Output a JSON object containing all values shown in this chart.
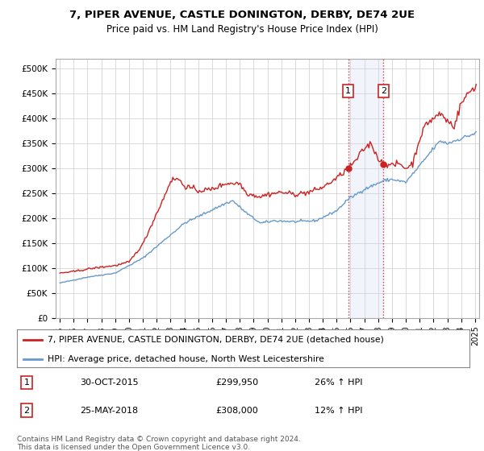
{
  "title": "7, PIPER AVENUE, CASTLE DONINGTON, DERBY, DE74 2UE",
  "subtitle": "Price paid vs. HM Land Registry's House Price Index (HPI)",
  "ylim": [
    0,
    520000
  ],
  "yticks": [
    0,
    50000,
    100000,
    150000,
    200000,
    250000,
    300000,
    350000,
    400000,
    450000,
    500000
  ],
  "ytick_labels": [
    "£0",
    "£50K",
    "£100K",
    "£150K",
    "£200K",
    "£250K",
    "£300K",
    "£350K",
    "£400K",
    "£450K",
    "£500K"
  ],
  "sale1_date": 2015.83,
  "sale1_price": 299950,
  "sale1_label": "1",
  "sale2_date": 2018.39,
  "sale2_price": 308000,
  "sale2_label": "2",
  "sale1_text": "30-OCT-2015",
  "sale1_price_text": "£299,950",
  "sale1_hpi_text": "26% ↑ HPI",
  "sale2_text": "25-MAY-2018",
  "sale2_price_text": "£308,000",
  "sale2_hpi_text": "12% ↑ HPI",
  "line1_color": "#cc2222",
  "line2_color": "#6699cc",
  "line1_label": "7, PIPER AVENUE, CASTLE DONINGTON, DERBY, DE74 2UE (detached house)",
  "line2_label": "HPI: Average price, detached house, North West Leicestershire",
  "footnote": "Contains HM Land Registry data © Crown copyright and database right 2024.\nThis data is licensed under the Open Government Licence v3.0.",
  "background_color": "#ffffff",
  "grid_color": "#cccccc",
  "highlight_color": "#ddeeff"
}
